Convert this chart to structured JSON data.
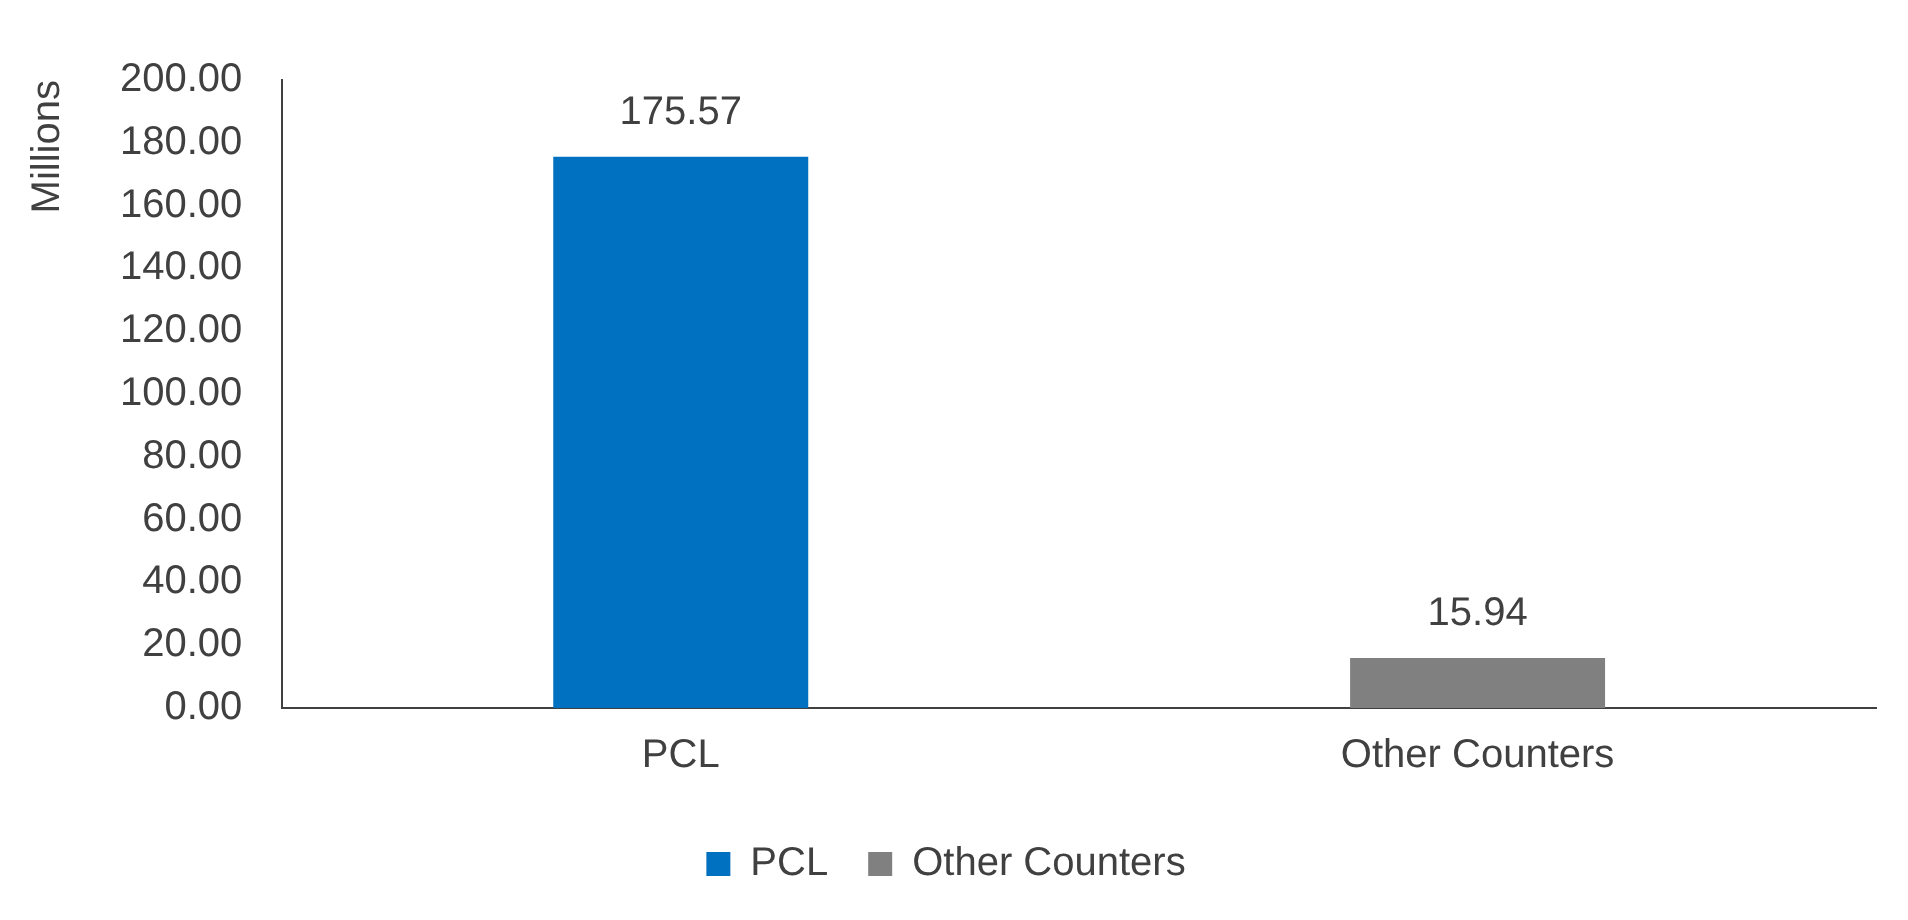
{
  "chart_data": {
    "type": "bar",
    "ylabel": "Millions",
    "categories": [
      "PCL",
      "Other Counters"
    ],
    "stacked": true,
    "series": [
      {
        "name": "PCL",
        "color": "#0070c0",
        "values": [
          175.57,
          null
        ]
      },
      {
        "name": "Other Counters",
        "color": "#808080",
        "values": [
          null,
          15.94
        ]
      }
    ],
    "ylim": [
      0,
      200
    ],
    "yticks": [
      {
        "value": 0,
        "label": "0.00"
      },
      {
        "value": 20,
        "label": "20.00"
      },
      {
        "value": 40,
        "label": "40.00"
      },
      {
        "value": 60,
        "label": "60.00"
      },
      {
        "value": 80,
        "label": "80.00"
      },
      {
        "value": 100,
        "label": "100.00"
      },
      {
        "value": 120,
        "label": "120.00"
      },
      {
        "value": 140,
        "label": "140.00"
      },
      {
        "value": 160,
        "label": "160.00"
      },
      {
        "value": 180,
        "label": "180.00"
      },
      {
        "value": 200,
        "label": "200.00"
      }
    ],
    "grid": false,
    "legend": "bottom",
    "data_labels": true
  }
}
